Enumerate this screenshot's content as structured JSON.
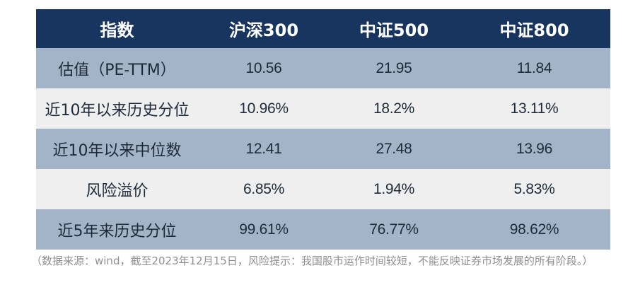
{
  "table": {
    "headers": [
      "指数",
      "沪深300",
      "中证500",
      "中证800"
    ],
    "rows": [
      {
        "label": "估值（PE-TTM）",
        "values": [
          "10.56",
          "21.95",
          "11.84"
        ]
      },
      {
        "label": "近10年以来历史分位",
        "values": [
          "10.96%",
          "18.2%",
          "13.11%"
        ]
      },
      {
        "label": "近10年以来中位数",
        "values": [
          "12.41",
          "27.48",
          "13.96"
        ]
      },
      {
        "label": "风险溢价",
        "values": [
          "6.85%",
          "1.94%",
          "5.83%"
        ]
      },
      {
        "label": "近5年来历史分位",
        "values": [
          "99.61%",
          "76.77%",
          "98.62%"
        ]
      }
    ]
  },
  "note": "（数据来源：wind，截至2023年12月15日，风险提示：我国股市运作时间较短，不能反映证券市场发展的所有阶段。）",
  "colors": {
    "header_bg": "#17355f",
    "row_blue": "#a4b4c8",
    "row_grey": "#efefef",
    "note_text": "#8f8f8f"
  }
}
